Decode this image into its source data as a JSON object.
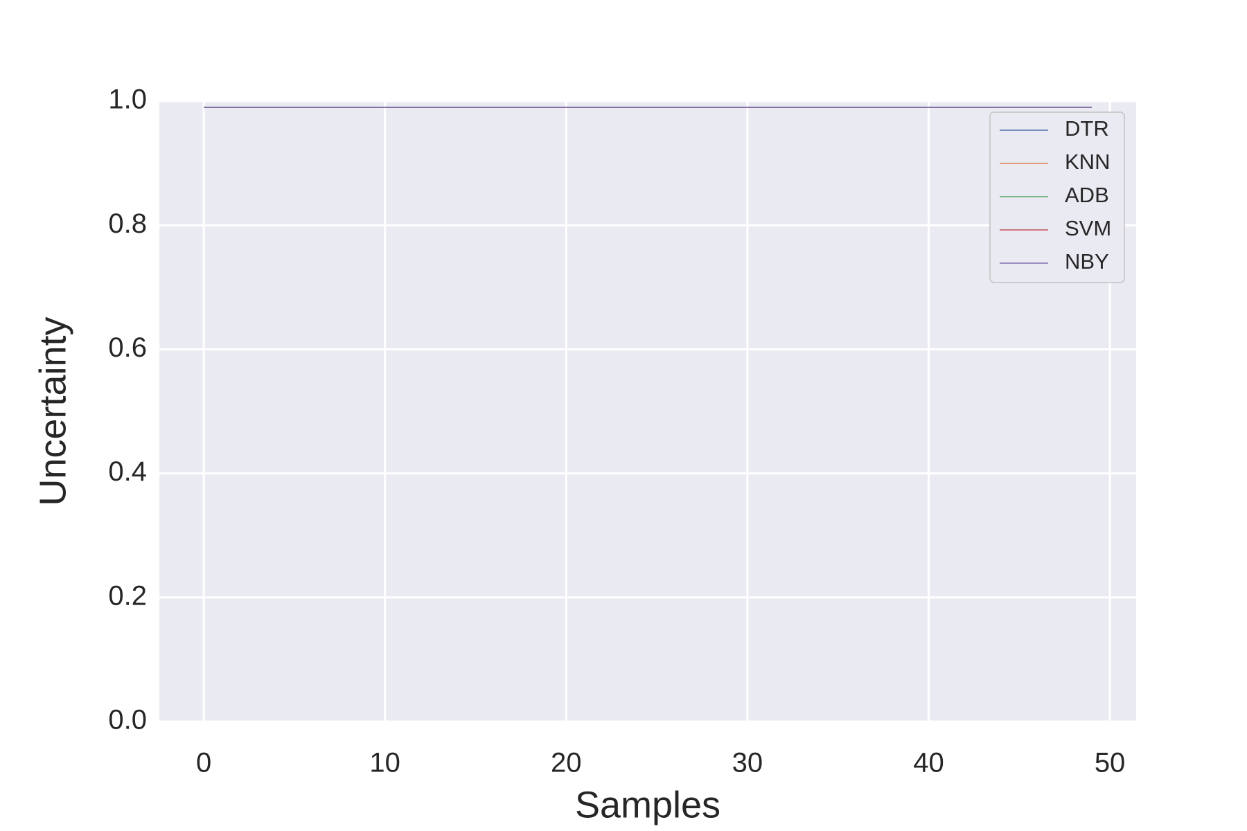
{
  "chart_data": {
    "type": "line",
    "xlabel": "Samples",
    "ylabel": "Uncertainty",
    "x": [
      0,
      1,
      2,
      3,
      4,
      5,
      6,
      7,
      8,
      9,
      10,
      11,
      12,
      13,
      14,
      15,
      16,
      17,
      18,
      19,
      20,
      21,
      22,
      23,
      24,
      25,
      26,
      27,
      28,
      29,
      30,
      31,
      32,
      33,
      34,
      35,
      36,
      37,
      38,
      39,
      40,
      41,
      42,
      43,
      44,
      45,
      46,
      47,
      48,
      49
    ],
    "series": [
      {
        "name": "DTR",
        "color": "#4c72b0",
        "values": [
          0.99,
          0.99,
          0.99,
          0.99,
          0.99,
          0.99,
          0.99,
          0.99,
          0.99,
          0.99,
          0.99,
          0.99,
          0.99,
          0.99,
          0.99,
          0.99,
          0.99,
          0.99,
          0.99,
          0.99,
          0.99,
          0.99,
          0.99,
          0.99,
          0.99,
          0.99,
          0.99,
          0.99,
          0.99,
          0.99,
          0.99,
          0.99,
          0.99,
          0.99,
          0.99,
          0.99,
          0.99,
          0.99,
          0.99,
          0.99,
          0.99,
          0.99,
          0.99,
          0.99,
          0.99,
          0.99,
          0.99,
          0.99,
          0.99,
          0.99
        ]
      },
      {
        "name": "KNN",
        "color": "#dd8452",
        "values": [
          0.99,
          0.99,
          0.99,
          0.99,
          0.99,
          0.99,
          0.99,
          0.99,
          0.99,
          0.99,
          0.99,
          0.99,
          0.99,
          0.99,
          0.99,
          0.99,
          0.99,
          0.99,
          0.99,
          0.99,
          0.99,
          0.99,
          0.99,
          0.99,
          0.99,
          0.99,
          0.99,
          0.99,
          0.99,
          0.99,
          0.99,
          0.99,
          0.99,
          0.99,
          0.99,
          0.99,
          0.99,
          0.99,
          0.99,
          0.99,
          0.99,
          0.99,
          0.99,
          0.99,
          0.99,
          0.99,
          0.99,
          0.99,
          0.99,
          0.99
        ]
      },
      {
        "name": "ADB",
        "color": "#55a868",
        "values": [
          0.99,
          0.99,
          0.99,
          0.99,
          0.99,
          0.99,
          0.99,
          0.99,
          0.99,
          0.99,
          0.99,
          0.99,
          0.99,
          0.99,
          0.99,
          0.99,
          0.99,
          0.99,
          0.99,
          0.99,
          0.99,
          0.99,
          0.99,
          0.99,
          0.99,
          0.99,
          0.99,
          0.99,
          0.99,
          0.99,
          0.99,
          0.99,
          0.99,
          0.99,
          0.99,
          0.99,
          0.99,
          0.99,
          0.99,
          0.99,
          0.99,
          0.99,
          0.99,
          0.99,
          0.99,
          0.99,
          0.99,
          0.99,
          0.99,
          0.99
        ]
      },
      {
        "name": "SVM",
        "color": "#c44e52",
        "values": [
          0.99,
          0.99,
          0.99,
          0.99,
          0.99,
          0.99,
          0.99,
          0.99,
          0.99,
          0.99,
          0.99,
          0.99,
          0.99,
          0.99,
          0.99,
          0.99,
          0.99,
          0.99,
          0.99,
          0.99,
          0.99,
          0.99,
          0.99,
          0.99,
          0.99,
          0.99,
          0.99,
          0.99,
          0.99,
          0.99,
          0.99,
          0.99,
          0.99,
          0.99,
          0.99,
          0.99,
          0.99,
          0.99,
          0.99,
          0.99,
          0.99,
          0.99,
          0.99,
          0.99,
          0.99,
          0.99,
          0.99,
          0.99,
          0.99,
          0.99
        ]
      },
      {
        "name": "NBY",
        "color": "#8172b3",
        "values": [
          0.99,
          0.99,
          0.99,
          0.99,
          0.99,
          0.99,
          0.99,
          0.99,
          0.99,
          0.99,
          0.99,
          0.99,
          0.99,
          0.99,
          0.99,
          0.99,
          0.99,
          0.99,
          0.99,
          0.99,
          0.99,
          0.99,
          0.99,
          0.99,
          0.99,
          0.99,
          0.99,
          0.99,
          0.99,
          0.99,
          0.99,
          0.99,
          0.99,
          0.99,
          0.99,
          0.99,
          0.99,
          0.99,
          0.99,
          0.99,
          0.99,
          0.99,
          0.99,
          0.99,
          0.99,
          0.99,
          0.99,
          0.99,
          0.99,
          0.99
        ]
      }
    ],
    "xlim": [
      -2.45,
      51.45
    ],
    "xticks": [
      0,
      10,
      20,
      30,
      40,
      50
    ],
    "ylim": [
      0,
      1
    ],
    "yticks": [
      {
        "value": 0,
        "label": "0.0"
      },
      0.2,
      0.4,
      0.6,
      0.8,
      {
        "value": 1,
        "label": "1.0"
      }
    ],
    "grid": true,
    "legend": "upper right"
  }
}
